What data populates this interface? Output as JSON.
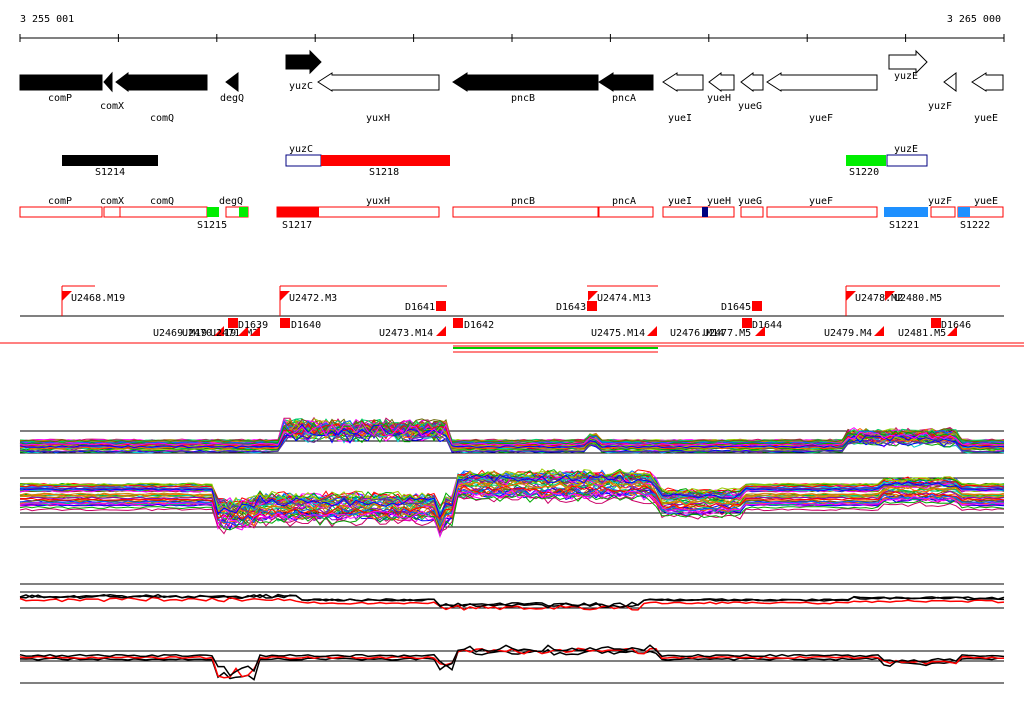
{
  "coords": {
    "start_label": "3 255 001",
    "end_label": "3 265 000"
  },
  "genes": [
    {
      "label": "comP",
      "strand": "+",
      "color": "black"
    },
    {
      "label": "comX",
      "strand": "-",
      "color": "black"
    },
    {
      "label": "comQ",
      "strand": "-",
      "color": "black"
    },
    {
      "label": "degQ",
      "strand": "-",
      "color": "black"
    },
    {
      "label": "yuzC",
      "strand": "+",
      "color": "black"
    },
    {
      "label": "yuxH",
      "strand": "-",
      "color": "white"
    },
    {
      "label": "pncB",
      "strand": "-",
      "color": "black"
    },
    {
      "label": "pncA",
      "strand": "-",
      "color": "black"
    },
    {
      "label": "yueI",
      "strand": "-",
      "color": "white"
    },
    {
      "label": "yueH",
      "strand": "-",
      "color": "white"
    },
    {
      "label": "yueG",
      "strand": "-",
      "color": "white"
    },
    {
      "label": "yueF",
      "strand": "-",
      "color": "white"
    },
    {
      "label": "yuzE",
      "strand": "+",
      "color": "white"
    },
    {
      "label": "yuzF",
      "strand": "-",
      "color": "white"
    },
    {
      "label": "yueE",
      "strand": "-",
      "color": "white"
    }
  ],
  "features_row": [
    {
      "label": "S1214",
      "color": "#000000"
    },
    {
      "label": "yuzC",
      "color": "#ffffff"
    },
    {
      "label": "S1218",
      "color": "#ff0000"
    },
    {
      "label": "S1220",
      "color": "#00ee00"
    },
    {
      "label": "yuzE",
      "color": "#ffffff"
    }
  ],
  "segments_row": [
    {
      "label": "comP"
    },
    {
      "label": "comX"
    },
    {
      "label": "comQ"
    },
    {
      "label": "degQ"
    },
    {
      "label": "yuxH"
    },
    {
      "label": "pncB"
    },
    {
      "label": "pncA"
    },
    {
      "label": "yueI"
    },
    {
      "label": "yueH"
    },
    {
      "label": "yueG"
    },
    {
      "label": "yueF"
    },
    {
      "label": "yuzF"
    },
    {
      "label": "yueE"
    }
  ],
  "segment_marks": [
    {
      "label": "S1215",
      "color": "#00ee00"
    },
    {
      "label": "S1217",
      "color": "#ff0000"
    },
    {
      "label": "S1221",
      "color": "#1e90ff"
    },
    {
      "label": "S1222",
      "color": "#1e90ff"
    }
  ],
  "transcripts_upper": [
    {
      "label": "U2468.M19"
    },
    {
      "label": "U2472.M3"
    },
    {
      "label": "D1641"
    },
    {
      "label": "D1643"
    },
    {
      "label": "U2474.M13"
    },
    {
      "label": "D1645"
    },
    {
      "label": "U2478.M2"
    },
    {
      "label": "U2480.M5"
    }
  ],
  "transcripts_lower": [
    {
      "label": "U2469.M19"
    },
    {
      "label": "U2470.M19"
    },
    {
      "label": "U2471.M3"
    },
    {
      "label": "D1639"
    },
    {
      "label": "D1640"
    },
    {
      "label": "U2473.M14"
    },
    {
      "label": "D1642"
    },
    {
      "label": "U2475.M14"
    },
    {
      "label": "U2476.M14"
    },
    {
      "label": "U2477.M5"
    },
    {
      "label": "D1644"
    },
    {
      "label": "U2479.M4"
    },
    {
      "label": "U2481.M5"
    },
    {
      "label": "D1646"
    }
  ],
  "colors": {
    "accent_red": "#ff0000",
    "accent_green": "#00ee00",
    "accent_blue": "#1e90ff",
    "dark_blue": "#000080"
  }
}
